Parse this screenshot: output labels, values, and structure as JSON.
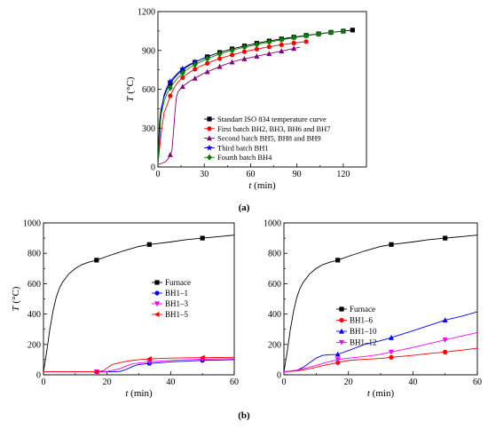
{
  "panel_labels": [
    "(a)",
    "(b)"
  ],
  "chart_data": [
    {
      "type": "line",
      "panel": "a",
      "xlabel_var": "t",
      "xlabel_unit": " (min)",
      "ylabel_var": "T",
      "ylabel_unit": " (°C)",
      "xlim": [
        0,
        135
      ],
      "ylim": [
        0,
        1200
      ],
      "xticks": [
        0,
        30,
        60,
        90,
        120
      ],
      "yticks": [
        0,
        300,
        600,
        900,
        1200
      ],
      "legend_position": "bottom-right",
      "series": [
        {
          "name": "Standart ISO 834 temperature curve",
          "color": "#000000",
          "marker": "square",
          "x": [
            0,
            1,
            2,
            4,
            6,
            8,
            10,
            12,
            15,
            18,
            21,
            24,
            27,
            30,
            36,
            42,
            48,
            54,
            60,
            66,
            72,
            78,
            84,
            90,
            96,
            102,
            108,
            114,
            120,
            126
          ],
          "y": [
            20,
            349,
            445,
            544,
            603,
            645,
            678,
            705,
            739,
            766,
            789,
            809,
            826,
            842,
            869,
            892,
            912,
            929,
            945,
            960,
            973,
            985,
            996,
            1006,
            1016,
            1025,
            1034,
            1042,
            1049,
            1057
          ],
          "marker_x": [
            8,
            16,
            24,
            32,
            40,
            48,
            56,
            64,
            72,
            80,
            88,
            96,
            104,
            112,
            120,
            126
          ]
        },
        {
          "name": "First batch BH2, BH3, BH6 and BH7",
          "color": "#ff0000",
          "marker": "circle",
          "x": [
            0,
            2,
            4,
            6,
            8,
            10,
            12,
            15,
            18,
            21,
            24,
            27,
            30,
            36,
            42,
            48,
            54,
            60,
            66,
            72,
            78,
            84,
            90,
            96
          ],
          "y": [
            20,
            250,
            420,
            480,
            550,
            600,
            640,
            680,
            710,
            735,
            755,
            775,
            790,
            820,
            845,
            865,
            885,
            900,
            915,
            928,
            940,
            950,
            960,
            968
          ],
          "marker_x": [
            8,
            16,
            24,
            32,
            40,
            48,
            56,
            64,
            72,
            80,
            88,
            96
          ]
        },
        {
          "name": "Second batch BH5, BH8 and BH9",
          "color": "#800080",
          "marker": "triangle",
          "x": [
            0,
            3,
            5,
            7,
            9,
            10,
            11,
            12,
            13,
            15,
            18,
            21,
            24,
            27,
            30,
            36,
            42,
            48,
            54,
            60,
            66,
            72,
            78,
            84,
            90,
            92
          ],
          "y": [
            20,
            30,
            40,
            70,
            120,
            260,
            420,
            540,
            580,
            610,
            640,
            665,
            685,
            705,
            725,
            755,
            785,
            810,
            830,
            845,
            860,
            875,
            890,
            905,
            920,
            925
          ],
          "marker_x": [
            8,
            16,
            24,
            32,
            40,
            48,
            56,
            64,
            72,
            80,
            88
          ]
        },
        {
          "name": "Third batch BH1",
          "color": "#0000ff",
          "marker": "star",
          "x": [
            0,
            1,
            2,
            4,
            6,
            8,
            10,
            12,
            15,
            18,
            21,
            24,
            27,
            30,
            33
          ],
          "y": [
            20,
            200,
            420,
            560,
            620,
            660,
            690,
            715,
            750,
            775,
            795,
            810,
            825,
            840,
            850
          ],
          "marker_x": [
            8,
            16,
            24,
            32
          ]
        },
        {
          "name": "Fourth batch BH4",
          "color": "#008000",
          "marker": "diamond",
          "x": [
            0,
            1,
            2,
            4,
            6,
            8,
            10,
            12,
            15,
            18,
            21,
            24,
            27,
            30,
            36,
            42,
            48,
            54,
            60,
            66,
            72,
            78,
            84,
            90,
            96,
            102,
            108,
            114,
            120
          ],
          "y": [
            20,
            250,
            400,
            510,
            570,
            610,
            645,
            675,
            715,
            745,
            770,
            790,
            808,
            825,
            855,
            880,
            900,
            920,
            935,
            950,
            965,
            978,
            990,
            1002,
            1013,
            1023,
            1032,
            1041,
            1049
          ],
          "marker_x": [
            8,
            16,
            24,
            32,
            40,
            48,
            56,
            64,
            72,
            80,
            88,
            96,
            104,
            112,
            120
          ]
        }
      ]
    },
    {
      "type": "line",
      "panel": "b-left",
      "xlabel_var": "t",
      "xlabel_unit": " (min)",
      "ylabel_var": "T",
      "ylabel_unit": " (°C)",
      "xlim": [
        0,
        60
      ],
      "ylim": [
        0,
        1000
      ],
      "xticks": [
        0,
        20,
        40,
        60
      ],
      "yticks": [
        0,
        200,
        400,
        600,
        800,
        1000
      ],
      "legend_position": "center-right",
      "series": [
        {
          "name": "Furnace",
          "color": "#000000",
          "marker": "square",
          "x": [
            0,
            1,
            2,
            3,
            4,
            5,
            6,
            8,
            10,
            12,
            14,
            16.7,
            20,
            25,
            30,
            33.3,
            40,
            45,
            50,
            55,
            60
          ],
          "y": [
            20,
            150,
            300,
            420,
            510,
            570,
            610,
            665,
            700,
            725,
            740,
            755,
            780,
            815,
            845,
            858,
            875,
            890,
            900,
            910,
            920
          ],
          "marker_x": [
            16.7,
            33.3,
            50
          ]
        },
        {
          "name": "BH1–1",
          "color": "#0000ff",
          "marker": "circle",
          "x": [
            0,
            10,
            16.7,
            20,
            24,
            26,
            28,
            30,
            33.3,
            40,
            45,
            50,
            55,
            60
          ],
          "y": [
            20,
            20,
            20,
            20,
            22,
            35,
            55,
            68,
            75,
            85,
            90,
            95,
            97,
            100
          ],
          "marker_x": [
            16.7,
            33.3,
            50
          ]
        },
        {
          "name": "BH1–3",
          "color": "#ff00ff",
          "marker": "tri-down",
          "x": [
            0,
            10,
            16.7,
            20,
            24,
            26,
            28,
            30,
            33.3,
            40,
            45,
            50,
            55,
            60
          ],
          "y": [
            20,
            20,
            20,
            22,
            40,
            58,
            72,
            78,
            85,
            95,
            100,
            103,
            105,
            106
          ],
          "marker_x": [
            16.7,
            33.3,
            50
          ]
        },
        {
          "name": "BH1–5",
          "color": "#ff0000",
          "marker": "tri-left",
          "x": [
            0,
            10,
            16.7,
            19,
            20,
            21,
            22,
            24,
            26,
            28,
            30,
            33.3,
            40,
            45,
            50,
            55,
            60
          ],
          "y": [
            20,
            20,
            20,
            28,
            45,
            60,
            70,
            80,
            88,
            95,
            100,
            105,
            110,
            112,
            113,
            114,
            115
          ],
          "marker_x": [
            16.7,
            33.3,
            50
          ]
        }
      ]
    },
    {
      "type": "line",
      "panel": "b-right",
      "xlabel_var": "t",
      "xlabel_unit": " (min)",
      "ylabel_var": "",
      "ylabel_unit": "",
      "xlim": [
        0,
        60
      ],
      "ylim": [
        0,
        1000
      ],
      "xticks": [
        0,
        20,
        40,
        60
      ],
      "yticks": [
        0,
        200,
        400,
        600,
        800,
        1000
      ],
      "legend_position": "center-right",
      "series": [
        {
          "name": "Furnace",
          "color": "#000000",
          "marker": "square",
          "x": [
            0,
            1,
            2,
            3,
            4,
            5,
            6,
            8,
            10,
            12,
            14,
            16.7,
            20,
            25,
            30,
            33.3,
            40,
            45,
            50,
            55,
            60
          ],
          "y": [
            20,
            150,
            300,
            420,
            510,
            570,
            610,
            665,
            700,
            725,
            740,
            755,
            780,
            815,
            845,
            858,
            875,
            890,
            900,
            910,
            920
          ],
          "marker_x": [
            16.7,
            33.3,
            50
          ]
        },
        {
          "name": "BH1–6",
          "color": "#ff0000",
          "marker": "circle",
          "x": [
            0,
            4,
            8,
            12,
            16.7,
            20,
            25,
            30,
            33.3,
            40,
            45,
            50,
            55,
            60
          ],
          "y": [
            20,
            25,
            40,
            60,
            80,
            95,
            102,
            108,
            115,
            128,
            140,
            150,
            162,
            175
          ],
          "marker_x": [
            16.7,
            33.3,
            50
          ]
        },
        {
          "name": "BH1–10",
          "color": "#0000ff",
          "marker": "triangle",
          "x": [
            0,
            4,
            6,
            8,
            10,
            12,
            14,
            16.7,
            20,
            25,
            30,
            33.3,
            40,
            45,
            50,
            55,
            60
          ],
          "y": [
            20,
            30,
            50,
            80,
            110,
            128,
            132,
            135,
            160,
            200,
            225,
            245,
            290,
            325,
            360,
            385,
            415
          ],
          "marker_x": [
            16.7,
            33.3,
            50
          ]
        },
        {
          "name": "BH1–12",
          "color": "#ff00ff",
          "marker": "tri-down",
          "x": [
            0,
            4,
            8,
            12,
            16.7,
            20,
            25,
            30,
            33.3,
            40,
            45,
            50,
            55,
            60
          ],
          "y": [
            20,
            30,
            50,
            75,
            100,
            110,
            120,
            135,
            150,
            180,
            205,
            230,
            255,
            278
          ],
          "marker_x": [
            16.7,
            33.3,
            50
          ]
        }
      ]
    }
  ]
}
